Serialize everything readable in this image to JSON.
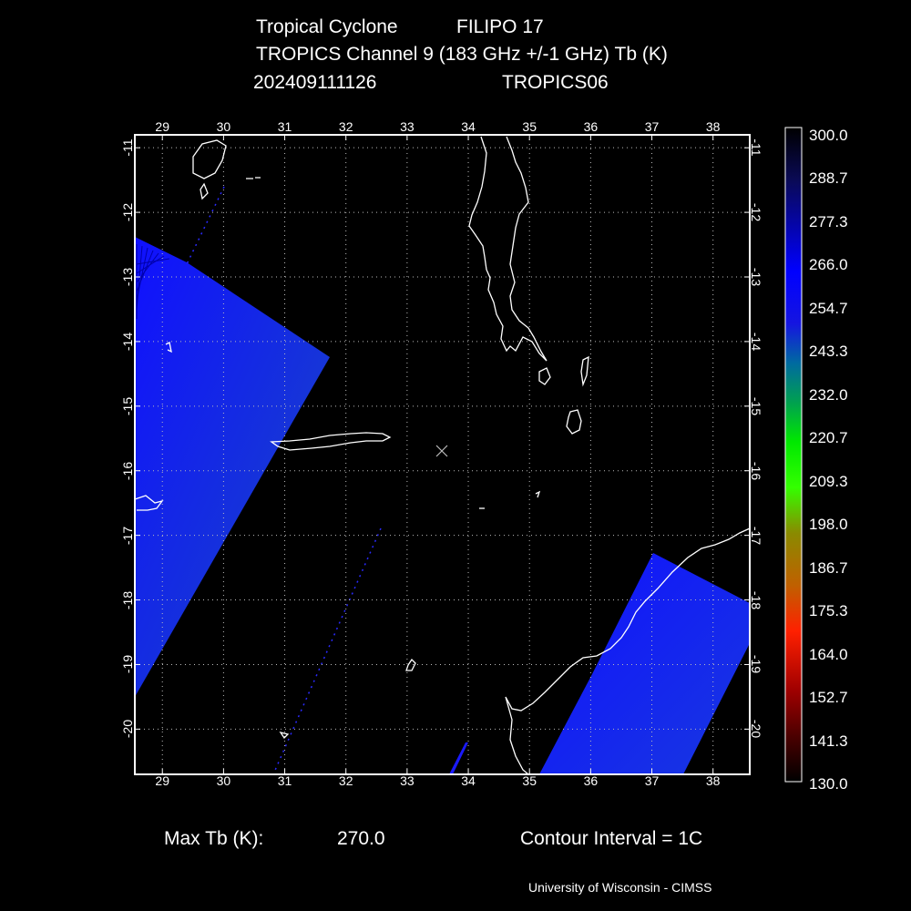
{
  "header": {
    "title_left": "Tropical Cyclone",
    "storm_name": "FILIPO 17",
    "channel": "TROPICS Channel 9 (183 GHz +/-1 GHz) Tb (K)",
    "datetime": "202409111126",
    "satellite": "TROPICS06"
  },
  "map": {
    "lon_ticks": [
      "29",
      "30",
      "31",
      "32",
      "33",
      "34",
      "35",
      "36",
      "37",
      "38"
    ],
    "lat_ticks": [
      "-11",
      "-12",
      "-13",
      "-14",
      "-15",
      "-16",
      "-17",
      "-18",
      "-19",
      "-20"
    ],
    "lon_range": [
      28.55,
      38.6
    ],
    "lat_range": [
      -20.7,
      -10.8
    ],
    "storm_center": {
      "lon": 33.57,
      "lat": -15.82
    },
    "colors": {
      "swath": "#1a1aff",
      "coast": "#ffffff",
      "grid": "#bbbbbb"
    }
  },
  "colorbar": {
    "labels": [
      "300.0",
      "288.7",
      "277.3",
      "266.0",
      "254.7",
      "243.3",
      "232.0",
      "220.7",
      "209.3",
      "198.0",
      "186.7",
      "175.3",
      "164.0",
      "152.7",
      "141.3",
      "130.0"
    ]
  },
  "footer": {
    "max_tb_label": "Max Tb (K):",
    "max_tb_value": "270.0",
    "contour": "Contour Interval = 1C",
    "credit": "University of Wisconsin - CIMSS"
  }
}
